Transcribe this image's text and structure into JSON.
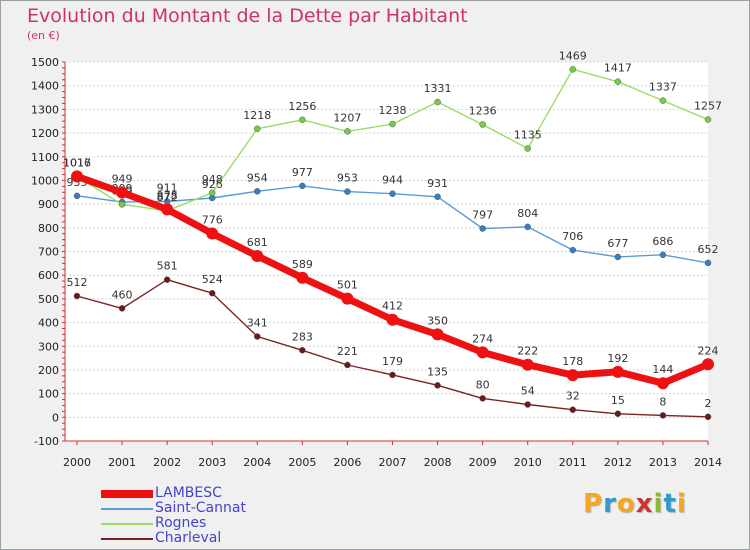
{
  "title": "Evolution du Montant de la Dette par Habitant",
  "unit": "(en €)",
  "logo": {
    "text": "Proxiti",
    "colors": [
      "#f5a623",
      "#3399cc",
      "#f5a623",
      "#cc3333",
      "#88bb33",
      "#3399cc",
      "#f5a623"
    ]
  },
  "chart_data": {
    "type": "line",
    "title": "Evolution du Montant de la Dette par Habitant",
    "ylabel": "(en €)",
    "xlabel": "",
    "ylim": [
      -100,
      1500
    ],
    "yticks": [
      -100,
      0,
      100,
      200,
      300,
      400,
      500,
      600,
      700,
      800,
      900,
      1000,
      1100,
      1200,
      1300,
      1400,
      1500
    ],
    "grid": "horizontal",
    "legend_position": "bottom-left",
    "x": [
      "2000",
      "2001",
      "2002",
      "2003",
      "2004",
      "2005",
      "2006",
      "2007",
      "2008",
      "2009",
      "2010",
      "2011",
      "2012",
      "2013",
      "2014"
    ],
    "series": [
      {
        "name": "Saint-Cannat",
        "color": "#5b9bd5",
        "marker": "#3a7fc1",
        "width": 1.4,
        "r": 3,
        "values": [
          935,
          909,
          911,
          926,
          954,
          977,
          953,
          944,
          931,
          797,
          804,
          706,
          677,
          686,
          652
        ]
      },
      {
        "name": "Rognes",
        "color": "#99dd66",
        "marker": "#77cc44",
        "width": 1.4,
        "r": 3,
        "values": [
          1016,
          899,
          872,
          948,
          1218,
          1256,
          1207,
          1238,
          1331,
          1236,
          1135,
          1469,
          1417,
          1337,
          1257
        ]
      },
      {
        "name": "Charleval",
        "color": "#7a2222",
        "marker": "#6b1a1a",
        "width": 1.4,
        "r": 3,
        "values": [
          512,
          460,
          581,
          524,
          341,
          283,
          221,
          179,
          135,
          80,
          54,
          32,
          15,
          8,
          2
        ]
      },
      {
        "name": "LAMBESC",
        "color": "#ee1111",
        "marker": "#ee1111",
        "width": 7,
        "r": 6,
        "values": [
          1017,
          949,
          878,
          776,
          681,
          589,
          501,
          412,
          350,
          274,
          222,
          178,
          192,
          144,
          224
        ]
      }
    ],
    "legend_order": [
      "LAMBESC",
      "Saint-Cannat",
      "Rognes",
      "Charleval"
    ]
  }
}
